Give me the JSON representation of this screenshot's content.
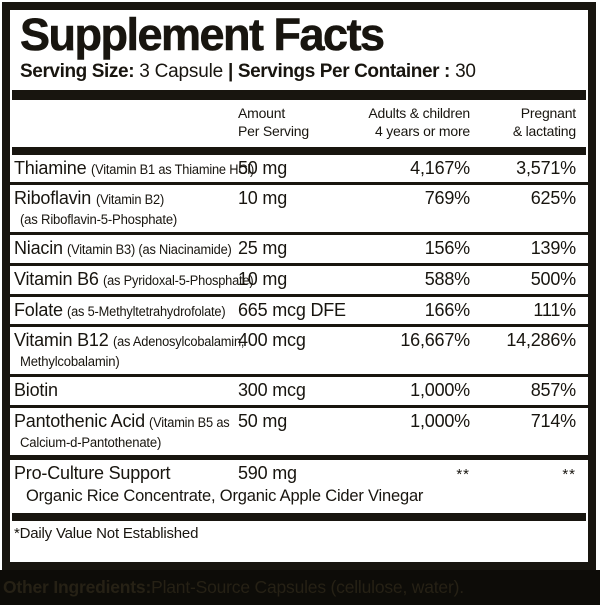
{
  "colors": {
    "ink": "#18150f",
    "strip_bg": "#0d0c08",
    "strip_text": "#262115"
  },
  "header": {
    "title": "Supplement Facts",
    "serving_size_label": "Serving Size:",
    "serving_size_value": " 3 Capsule ",
    "separator": "| ",
    "servings_label": "Servings Per Container :",
    "servings_value": " 30"
  },
  "columns": {
    "amount_line1": "Amount",
    "amount_line2": "Per Serving",
    "adults_line1": "Adults & children",
    "adults_line2": "4 years or more",
    "pregnant_line1": "Pregnant",
    "pregnant_line2": "& lactating"
  },
  "rows": [
    {
      "name": "Thiamine",
      "paren": "(Vitamin B1 as Thiamine HCl)",
      "sub": null,
      "amount": "50 mg",
      "adults": "4,167%",
      "pregnant": "3,571%"
    },
    {
      "name": "Riboflavin",
      "paren": "(Vitamin B2)",
      "sub": "(as Riboflavin-5-Phosphate)",
      "amount": "10 mg",
      "adults": "769%",
      "pregnant": "625%"
    },
    {
      "name": "Niacin",
      "paren": "(Vitamin B3) (as Niacinamide)",
      "sub": null,
      "amount": "25 mg",
      "adults": "156%",
      "pregnant": "139%"
    },
    {
      "name": "Vitamin B6",
      "paren": "(as Pyridoxal-5-Phosphate)",
      "sub": null,
      "amount": "10 mg",
      "adults": "588%",
      "pregnant": "500%"
    },
    {
      "name": "Folate",
      "paren": "(as 5-Methyltetrahydrofolate)",
      "sub": null,
      "amount": "665 mcg DFE",
      "adults": "166%",
      "pregnant": "111%"
    },
    {
      "name": "Vitamin B12",
      "paren": "(as Adenosylcobalamin,",
      "sub": "Methylcobalamin)",
      "amount": "400 mcg",
      "adults": "16,667%",
      "pregnant": "14,286%"
    },
    {
      "name": "Biotin",
      "paren": "",
      "sub": null,
      "amount": "300 mcg",
      "adults": "1,000%",
      "pregnant": "857%"
    },
    {
      "name": "Pantothenic Acid",
      "paren": "(Vitamin B5 as",
      "sub": "Calcium-d-Pantothenate)",
      "amount": "50 mg",
      "adults": "1,000%",
      "pregnant": "714%"
    },
    {
      "name": "Pro-Culture Support",
      "paren": "",
      "sub": "Organic Rice Concentrate, Organic Apple Cider Vinegar",
      "sub_wide": true,
      "thick_top": true,
      "amount": "590 mg",
      "adults": "**",
      "pregnant": "**"
    }
  ],
  "footnote": "*Daily Value Not Established",
  "other_ingredients": {
    "label": "Other Ingredients:",
    "text": " Plant-Source Capsules (cellulose, water)."
  }
}
